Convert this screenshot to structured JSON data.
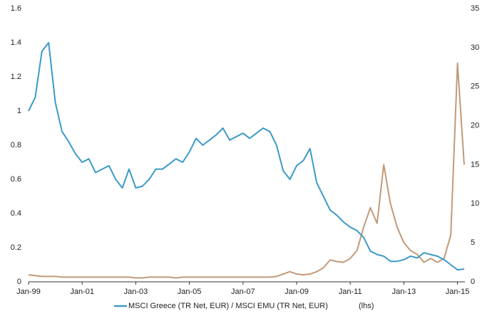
{
  "chart_data": {
    "type": "line",
    "categories": [
      "Jan-99",
      null,
      null,
      null,
      null,
      null,
      null,
      null,
      "Jan-01",
      null,
      null,
      null,
      null,
      null,
      null,
      null,
      "Jan-03",
      null,
      null,
      null,
      null,
      null,
      null,
      null,
      "Jan-05",
      null,
      null,
      null,
      null,
      null,
      null,
      null,
      "Jan-07",
      null,
      null,
      null,
      null,
      null,
      null,
      null,
      "Jan-09",
      null,
      null,
      null,
      null,
      null,
      null,
      null,
      "Jan-11",
      null,
      null,
      null,
      null,
      null,
      null,
      null,
      "Jan-13",
      null,
      null,
      null,
      null,
      null,
      null,
      null,
      "Jan-15",
      null
    ],
    "series": [
      {
        "name": "MSCI Greece (TR Net, EUR) / MSCI EMU (TR Net, EUR)",
        "color": "#3d9ac8",
        "values": [
          1.0,
          1.08,
          1.35,
          1.4,
          1.05,
          0.88,
          0.82,
          0.75,
          0.7,
          0.72,
          0.64,
          0.66,
          0.68,
          0.6,
          0.55,
          0.66,
          0.55,
          0.56,
          0.6,
          0.66,
          0.66,
          0.69,
          0.72,
          0.7,
          0.76,
          0.84,
          0.8,
          0.83,
          0.86,
          0.9,
          0.83,
          0.85,
          0.87,
          0.84,
          0.87,
          0.9,
          0.88,
          0.8,
          0.65,
          0.6,
          0.68,
          0.71,
          0.78,
          0.58,
          0.5,
          0.42,
          0.39,
          0.35,
          0.32,
          0.3,
          0.26,
          0.18,
          0.16,
          0.15,
          0.12,
          0.12,
          0.13,
          0.15,
          0.14,
          0.17,
          0.16,
          0.15,
          0.13,
          0.1,
          0.07,
          0.075
        ]
      },
      {
        "color": "#c29a78",
        "axis": "y2",
        "values": [
          0.9,
          0.8,
          0.7,
          0.7,
          0.7,
          0.6,
          0.6,
          0.6,
          0.6,
          0.6,
          0.6,
          0.6,
          0.6,
          0.6,
          0.6,
          0.6,
          0.5,
          0.5,
          0.6,
          0.6,
          0.6,
          0.6,
          0.5,
          0.6,
          0.6,
          0.6,
          0.6,
          0.6,
          0.6,
          0.6,
          0.6,
          0.6,
          0.6,
          0.6,
          0.6,
          0.6,
          0.6,
          0.7,
          1.0,
          1.3,
          1.0,
          0.9,
          1.0,
          1.3,
          1.8,
          2.8,
          2.6,
          2.5,
          3.0,
          4.0,
          7.0,
          9.5,
          7.5,
          15.0,
          10.0,
          7.0,
          5.0,
          4.0,
          3.5,
          2.5,
          3.0,
          2.5,
          3.0,
          6.0,
          28.0,
          15.0
        ]
      }
    ],
    "legend_note": "(lhs)",
    "ylim": [
      0,
      1.6
    ],
    "yticks": [
      0,
      0.2,
      0.4,
      0.6,
      0.8,
      1,
      1.2,
      1.4,
      1.6
    ],
    "y2lim": [
      0,
      35
    ],
    "y2ticks": [
      0,
      5,
      10,
      15,
      20,
      25,
      30,
      35
    ]
  }
}
